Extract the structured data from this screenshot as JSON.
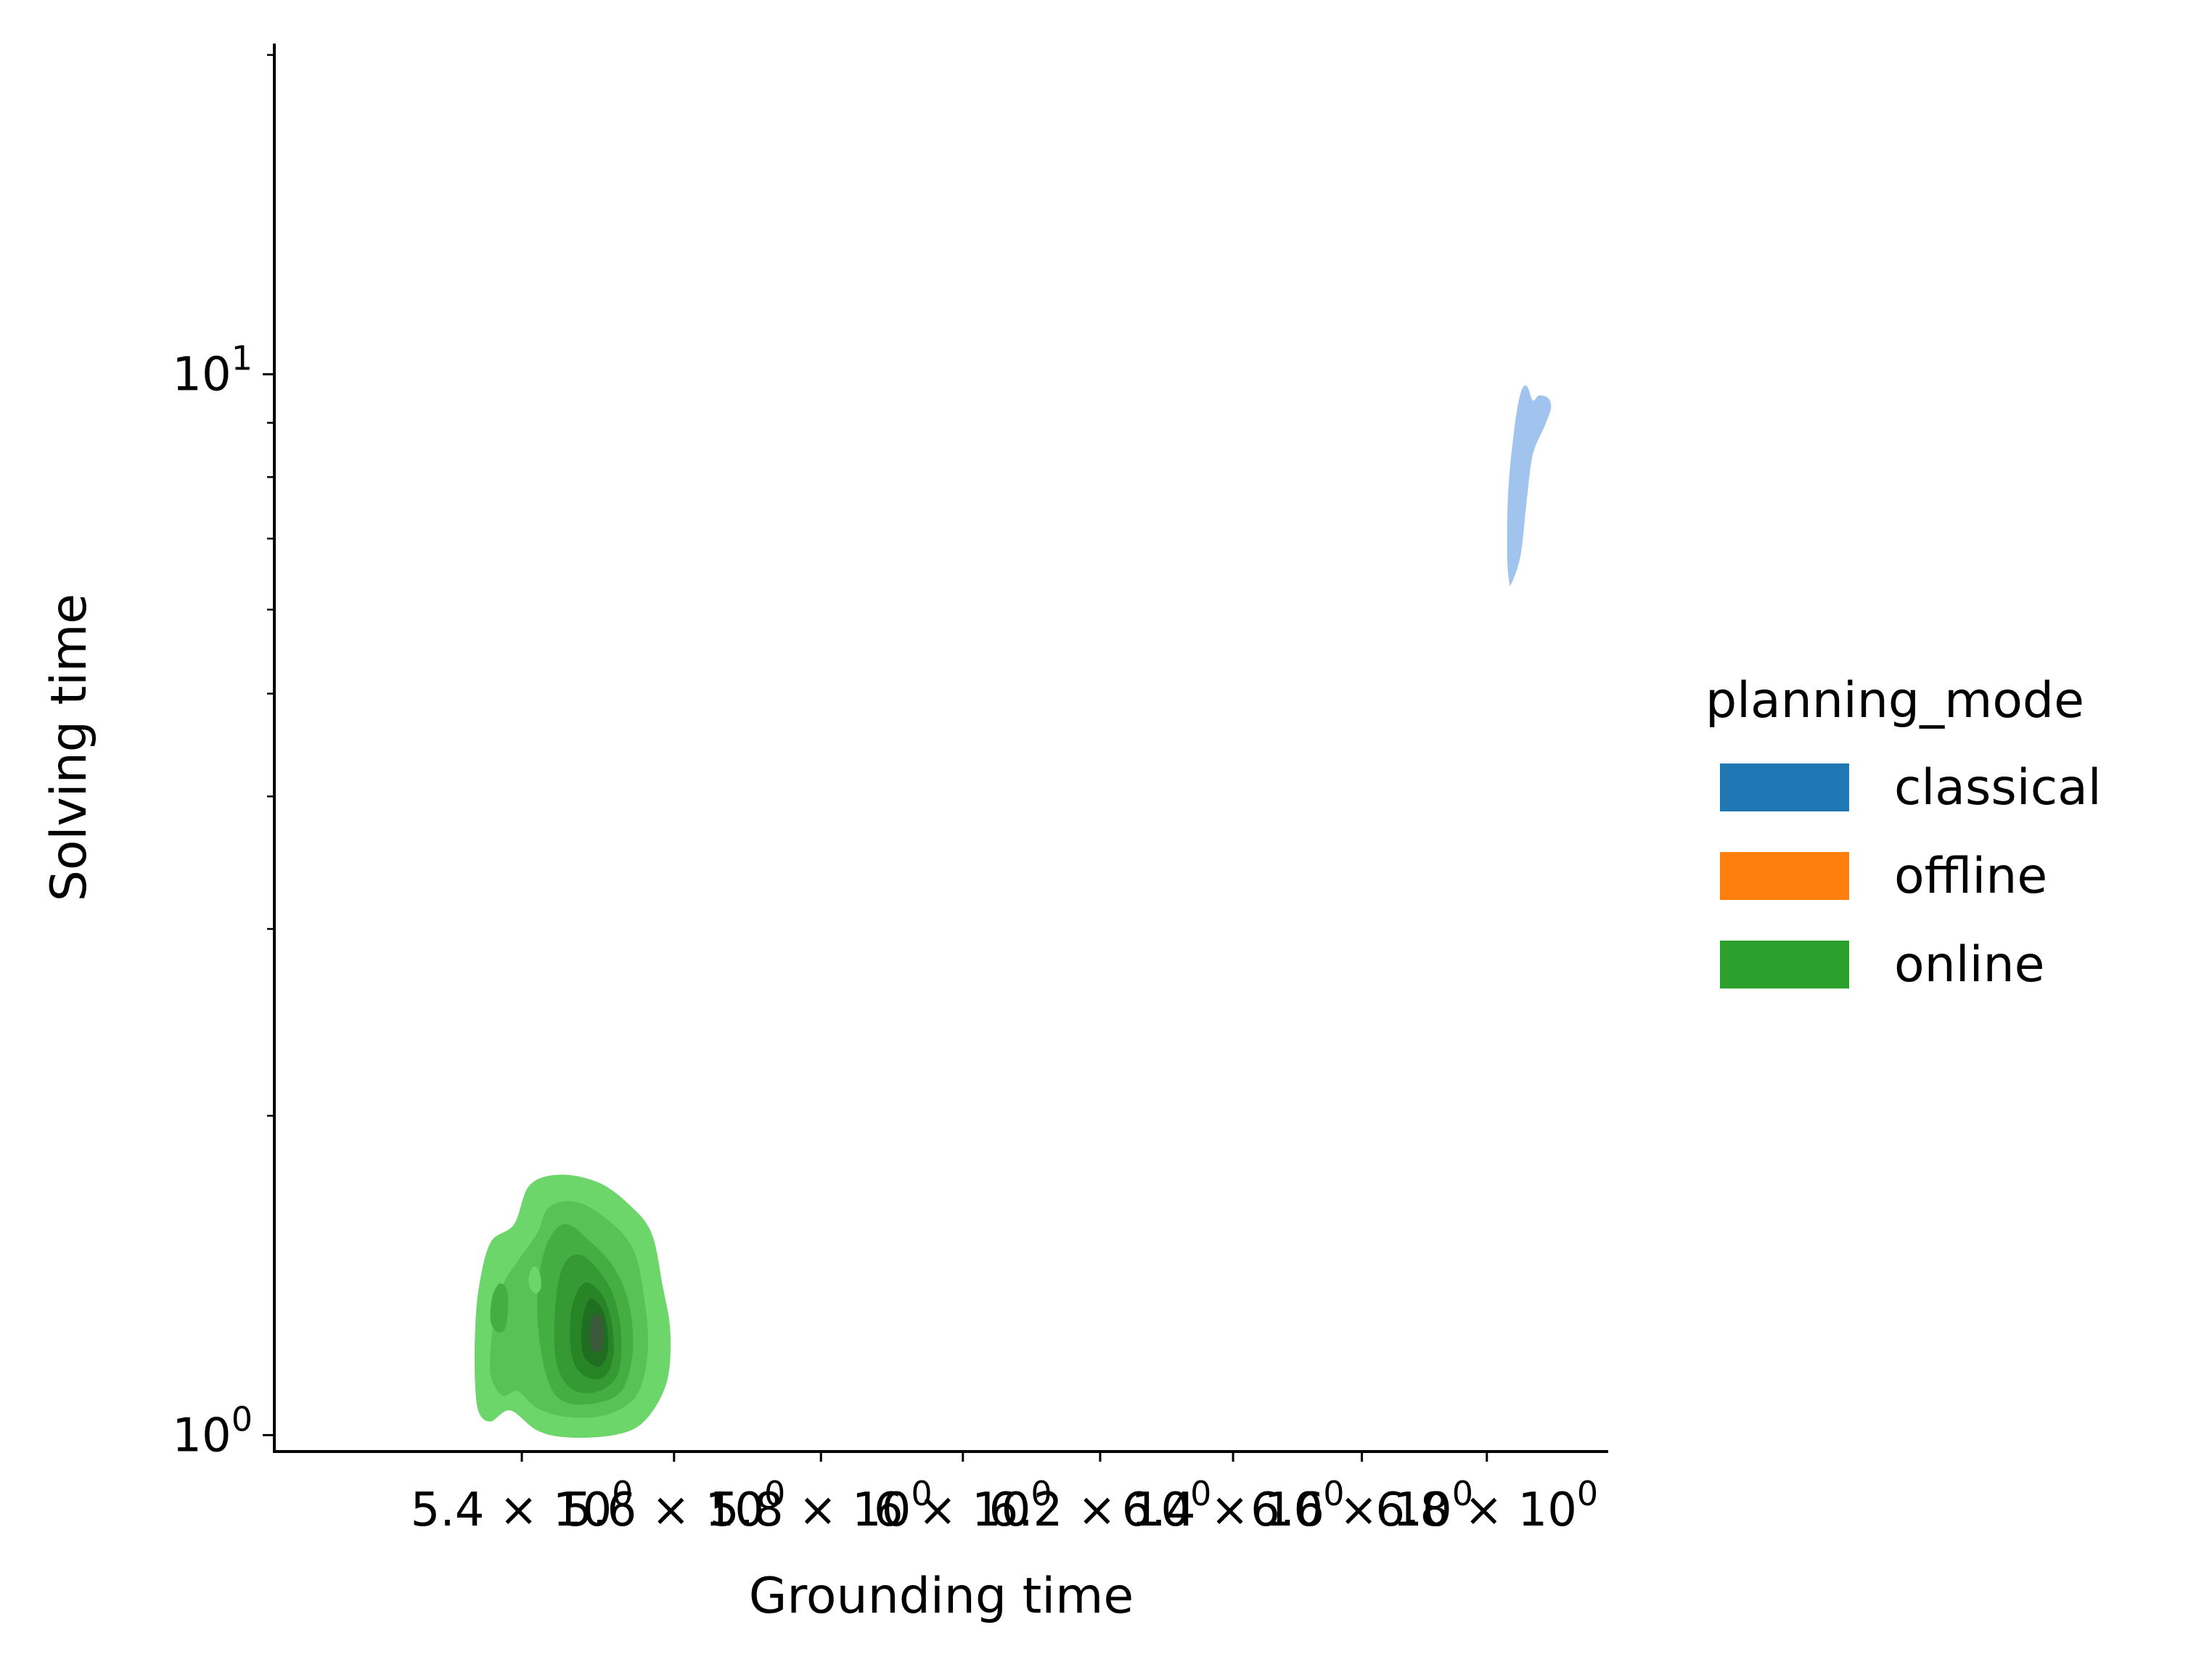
{
  "chart_data": {
    "type": "kde_contour",
    "xlabel": "Grounding time",
    "ylabel": "Solving time",
    "xscale": "log",
    "yscale": "log",
    "xlim": [
      5.09,
      7.0
    ],
    "ylim": [
      0.965,
      20.5
    ],
    "grid": false,
    "x_ticks": [
      {
        "value": 5.4,
        "label": "5.4 × 10"
      },
      {
        "value": 5.6,
        "label": "5.6 × 10"
      },
      {
        "value": 5.8,
        "label": "5.8 × 10"
      },
      {
        "value": 6.0,
        "label": "6 × 10"
      },
      {
        "value": 6.2,
        "label": "6.2 × 10"
      },
      {
        "value": 6.4,
        "label": "6.4 × 10"
      },
      {
        "value": 6.6,
        "label": "6.6 × 10"
      },
      {
        "value": 6.8,
        "label": "6.8 × 10"
      }
    ],
    "x_tick_exponent": "0",
    "y_ticks": [
      {
        "value": 1,
        "base": "10",
        "exp": "0"
      },
      {
        "value": 10,
        "base": "10",
        "exp": "1"
      }
    ],
    "y_minor_ticks": [
      2,
      3,
      4,
      5,
      6,
      7,
      8,
      9,
      20
    ],
    "legend": {
      "title": "planning_mode",
      "placement": "center-right",
      "entries": [
        {
          "label": "classical",
          "color": "#1f77b4"
        },
        {
          "label": "offline",
          "color": "#ff7f0e"
        },
        {
          "label": "online",
          "color": "#2ca02c"
        }
      ]
    },
    "series": [
      {
        "name": "classical",
        "color": "#a1c4ee",
        "levels": [
          {
            "fill": "#a1c4ee",
            "points": [
              [
                6.84,
                6.35
              ],
              [
                6.855,
                6.75
              ],
              [
                6.865,
                7.6
              ],
              [
                6.875,
                8.4
              ],
              [
                6.895,
                8.95
              ],
              [
                6.905,
                9.3
              ],
              [
                6.9,
                9.5
              ],
              [
                6.885,
                9.55
              ],
              [
                6.875,
                9.45
              ],
              [
                6.865,
                9.75
              ],
              [
                6.855,
                9.6
              ],
              [
                6.845,
                8.9
              ],
              [
                6.835,
                7.8
              ],
              [
                6.833,
                6.8
              ],
              [
                6.836,
                6.4
              ]
            ]
          }
        ]
      },
      {
        "name": "online",
        "color": "#2ca02c",
        "levels": [
          {
            "fill": "#6dd66b",
            "points": [
              [
                5.34,
                1.12
              ],
              [
                5.345,
                1.05
              ],
              [
                5.36,
                1.03
              ],
              [
                5.385,
                1.055
              ],
              [
                5.42,
                1.01
              ],
              [
                5.46,
                0.995
              ],
              [
                5.52,
                1.0
              ],
              [
                5.56,
                1.03
              ],
              [
                5.59,
                1.12
              ],
              [
                5.595,
                1.25
              ],
              [
                5.585,
                1.38
              ],
              [
                5.57,
                1.55
              ],
              [
                5.54,
                1.65
              ],
              [
                5.5,
                1.73
              ],
              [
                5.45,
                1.76
              ],
              [
                5.41,
                1.72
              ],
              [
                5.39,
                1.58
              ],
              [
                5.36,
                1.52
              ],
              [
                5.345,
                1.38
              ],
              [
                5.34,
                1.25
              ]
            ]
          },
          {
            "fill": "#58c256",
            "points": [
              [
                5.36,
                1.14
              ],
              [
                5.375,
                1.09
              ],
              [
                5.395,
                1.1
              ],
              [
                5.42,
                1.06
              ],
              [
                5.46,
                1.04
              ],
              [
                5.51,
                1.045
              ],
              [
                5.55,
                1.09
              ],
              [
                5.565,
                1.2
              ],
              [
                5.56,
                1.35
              ],
              [
                5.545,
                1.5
              ],
              [
                5.51,
                1.6
              ],
              [
                5.47,
                1.66
              ],
              [
                5.435,
                1.64
              ],
              [
                5.42,
                1.55
              ],
              [
                5.395,
                1.46
              ],
              [
                5.375,
                1.38
              ],
              [
                5.362,
                1.25
              ]
            ]
          },
          {
            "fill": "#45ae43",
            "points": [
              [
                5.43,
                1.15
              ],
              [
                5.45,
                1.08
              ],
              [
                5.49,
                1.07
              ],
              [
                5.53,
                1.1
              ],
              [
                5.545,
                1.2
              ],
              [
                5.54,
                1.33
              ],
              [
                5.52,
                1.44
              ],
              [
                5.49,
                1.52
              ],
              [
                5.46,
                1.58
              ],
              [
                5.44,
                1.55
              ],
              [
                5.425,
                1.45
              ],
              [
                5.42,
                1.3
              ]
            ]
          },
          {
            "fill": "#359a33",
            "points": [
              [
                5.45,
                1.14
              ],
              [
                5.47,
                1.1
              ],
              [
                5.5,
                1.1
              ],
              [
                5.525,
                1.14
              ],
              [
                5.53,
                1.24
              ],
              [
                5.52,
                1.35
              ],
              [
                5.5,
                1.43
              ],
              [
                5.475,
                1.48
              ],
              [
                5.455,
                1.45
              ],
              [
                5.445,
                1.36
              ],
              [
                5.442,
                1.22
              ]
            ]
          },
          {
            "fill": "#278526",
            "points": [
              [
                5.47,
                1.16
              ],
              [
                5.49,
                1.13
              ],
              [
                5.51,
                1.14
              ],
              [
                5.52,
                1.2
              ],
              [
                5.515,
                1.3
              ],
              [
                5.5,
                1.37
              ],
              [
                5.48,
                1.39
              ],
              [
                5.465,
                1.32
              ],
              [
                5.463,
                1.22
              ]
            ]
          },
          {
            "fill": "#1f6e21",
            "points": [
              [
                5.48,
                1.19
              ],
              [
                5.5,
                1.16
              ],
              [
                5.512,
                1.2
              ],
              [
                5.51,
                1.28
              ],
              [
                5.5,
                1.33
              ],
              [
                5.487,
                1.34
              ],
              [
                5.478,
                1.27
              ]
            ]
          },
          {
            "fill": "#3a5a3b",
            "points": [
              [
                5.49,
                1.21
              ],
              [
                5.503,
                1.2
              ],
              [
                5.507,
                1.25
              ],
              [
                5.503,
                1.29
              ],
              [
                5.495,
                1.3
              ],
              [
                5.488,
                1.26
              ]
            ]
          },
          {
            "fill": "#6dd66b",
            "points": [
              [
                5.41,
                1.38
              ],
              [
                5.418,
                1.36
              ],
              [
                5.425,
                1.38
              ],
              [
                5.422,
                1.43
              ],
              [
                5.414,
                1.44
              ],
              [
                5.409,
                1.41
              ]
            ]
          },
          {
            "fill": "#45ae43",
            "points": [
              [
                5.36,
                1.28
              ],
              [
                5.37,
                1.25
              ],
              [
                5.38,
                1.27
              ],
              [
                5.382,
                1.36
              ],
              [
                5.372,
                1.39
              ],
              [
                5.362,
                1.35
              ]
            ]
          }
        ]
      }
    ]
  }
}
